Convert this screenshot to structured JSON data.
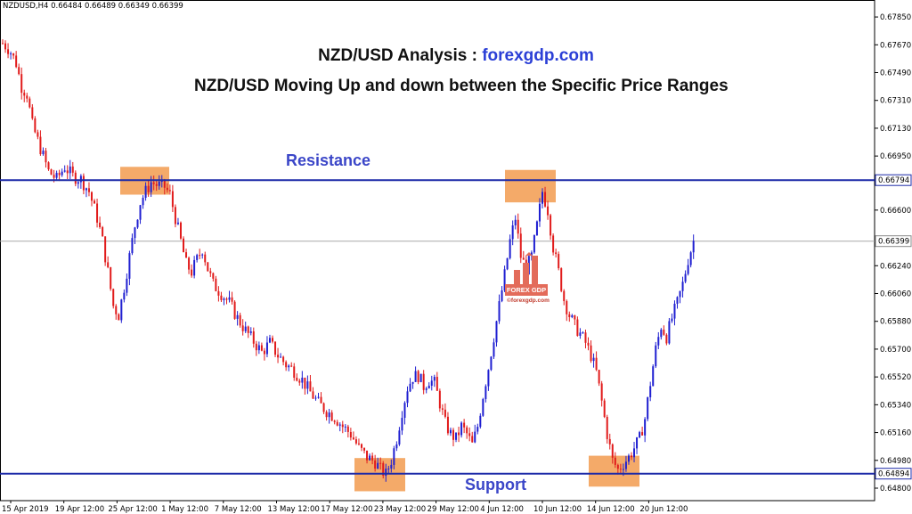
{
  "header": {
    "symbol_info": "NZDUSD,H4  0.66484 0.66489 0.66349 0.66399"
  },
  "titles": {
    "prefix": "NZD/USD Analysis : ",
    "brand": "forexgdp.com",
    "subtitle": "NZD/USD Moving Up and down between the Specific Price Ranges"
  },
  "labels": {
    "resistance": "Resistance",
    "support": "Support"
  },
  "watermark": {
    "badge": "FOREX GDP",
    "url": "©forexgdp.com"
  },
  "colors": {
    "bull": "#1f1fd1",
    "bear": "#e11b1b",
    "level_line": "#1d2aa8",
    "highlight_box": "#f29b4f",
    "current_price_line": "#a9a9a9"
  },
  "chart_data": {
    "type": "candlestick",
    "symbol": "NZDUSD",
    "timeframe": "H4",
    "ylim": [
      0.648,
      0.67885
    ],
    "y_ticks": [
      "0.67850",
      "0.67670",
      "0.67490",
      "0.67310",
      "0.67130",
      "0.66950",
      "0.66600",
      "0.66240",
      "0.66060",
      "0.65880",
      "0.65700",
      "0.65520",
      "0.65340",
      "0.65160",
      "0.64980",
      "0.64800"
    ],
    "x_ticks": [
      "15 Apr 2019",
      "19 Apr 12:00",
      "25 Apr 12:00",
      "1 May 12:00",
      "7 May 12:00",
      "13 May 12:00",
      "17 May 12:00",
      "23 May 12:00",
      "29 May 12:00",
      "4 Jun 12:00",
      "10 Jun 12:00",
      "14 Jun 12:00",
      "20 Jun 12:00"
    ],
    "levels": [
      {
        "name": "Resistance",
        "value": 0.66794,
        "label": "0.66794"
      },
      {
        "name": "Support",
        "value": 0.64894,
        "label": "0.64894"
      }
    ],
    "current_price": {
      "value": 0.66399,
      "label": "0.66399"
    },
    "highlights": [
      {
        "x_from": "25 Apr 12:00",
        "x_to": "1 May 00:00",
        "y_from": 0.667,
        "y_to": 0.6688
      },
      {
        "x_from": "17 May 12:00",
        "x_to": "23 May 00:00",
        "y_from": 0.6478,
        "y_to": 0.64995
      },
      {
        "x_from": "4 Jun 12:00",
        "x_to": "10 Jun 00:00",
        "y_from": 0.6665,
        "y_to": 0.6686
      },
      {
        "x_from": "14 Jun 00:00",
        "x_to": "17 Jun 12:00",
        "y_from": 0.6481,
        "y_to": 0.6501
      }
    ],
    "price_path": [
      [
        0,
        0.6768
      ],
      [
        5,
        0.6764
      ],
      [
        10,
        0.6755
      ],
      [
        14,
        0.674
      ],
      [
        18,
        0.6735
      ],
      [
        22,
        0.6715
      ],
      [
        28,
        0.67
      ],
      [
        34,
        0.6685
      ],
      [
        40,
        0.668
      ],
      [
        46,
        0.6688
      ],
      [
        52,
        0.6682
      ],
      [
        58,
        0.668
      ],
      [
        64,
        0.6672
      ],
      [
        70,
        0.6655
      ],
      [
        74,
        0.664
      ],
      [
        78,
        0.662
      ],
      [
        82,
        0.6598
      ],
      [
        86,
        0.6592
      ],
      [
        90,
        0.661
      ],
      [
        94,
        0.663
      ],
      [
        98,
        0.665
      ],
      [
        102,
        0.6665
      ],
      [
        106,
        0.6672
      ],
      [
        110,
        0.6678
      ],
      [
        115,
        0.6676
      ],
      [
        120,
        0.6675
      ],
      [
        124,
        0.667
      ],
      [
        128,
        0.6655
      ],
      [
        132,
        0.664
      ],
      [
        136,
        0.6625
      ],
      [
        140,
        0.662
      ],
      [
        144,
        0.6628
      ],
      [
        148,
        0.6635
      ],
      [
        152,
        0.6622
      ],
      [
        156,
        0.6612
      ],
      [
        162,
        0.6606
      ],
      [
        168,
        0.66
      ],
      [
        174,
        0.659
      ],
      [
        180,
        0.6582
      ],
      [
        186,
        0.6575
      ],
      [
        192,
        0.6568
      ],
      [
        198,
        0.6574
      ],
      [
        204,
        0.6566
      ],
      [
        210,
        0.656
      ],
      [
        216,
        0.6556
      ],
      [
        222,
        0.655
      ],
      [
        228,
        0.6542
      ],
      [
        234,
        0.6535
      ],
      [
        240,
        0.653
      ],
      [
        246,
        0.6526
      ],
      [
        252,
        0.652
      ],
      [
        258,
        0.6515
      ],
      [
        264,
        0.6506
      ],
      [
        270,
        0.65
      ],
      [
        276,
        0.6497
      ],
      [
        280,
        0.6492
      ],
      [
        284,
        0.6489
      ],
      [
        288,
        0.6498
      ],
      [
        292,
        0.6512
      ],
      [
        296,
        0.653
      ],
      [
        300,
        0.6545
      ],
      [
        304,
        0.6552
      ],
      [
        308,
        0.6553
      ],
      [
        312,
        0.6546
      ],
      [
        316,
        0.655
      ],
      [
        320,
        0.6548
      ],
      [
        324,
        0.6535
      ],
      [
        328,
        0.6522
      ],
      [
        332,
        0.6515
      ],
      [
        336,
        0.6512
      ],
      [
        340,
        0.652
      ],
      [
        344,
        0.6515
      ],
      [
        348,
        0.6508
      ],
      [
        352,
        0.652
      ],
      [
        356,
        0.654
      ],
      [
        360,
        0.6558
      ],
      [
        364,
        0.6578
      ],
      [
        368,
        0.6598
      ],
      [
        372,
        0.6618
      ],
      [
        376,
        0.664
      ],
      [
        380,
        0.6655
      ],
      [
        384,
        0.663
      ],
      [
        388,
        0.6622
      ],
      [
        392,
        0.663
      ],
      [
        396,
        0.665
      ],
      [
        400,
        0.6672
      ],
      [
        404,
        0.666
      ],
      [
        408,
        0.6636
      ],
      [
        412,
        0.662
      ],
      [
        416,
        0.6602
      ],
      [
        420,
        0.6592
      ],
      [
        424,
        0.6585
      ],
      [
        428,
        0.658
      ],
      [
        432,
        0.6574
      ],
      [
        436,
        0.6566
      ],
      [
        440,
        0.6555
      ],
      [
        444,
        0.6536
      ],
      [
        448,
        0.6515
      ],
      [
        452,
        0.6498
      ],
      [
        456,
        0.6492
      ],
      [
        460,
        0.6496
      ],
      [
        464,
        0.65
      ],
      [
        468,
        0.6506
      ],
      [
        472,
        0.6512
      ],
      [
        476,
        0.6525
      ],
      [
        480,
        0.6548
      ],
      [
        484,
        0.657
      ],
      [
        488,
        0.6585
      ],
      [
        492,
        0.6578
      ],
      [
        496,
        0.659
      ],
      [
        500,
        0.66
      ],
      [
        504,
        0.6612
      ],
      [
        508,
        0.6628
      ],
      [
        512,
        0.664
      ]
    ]
  }
}
